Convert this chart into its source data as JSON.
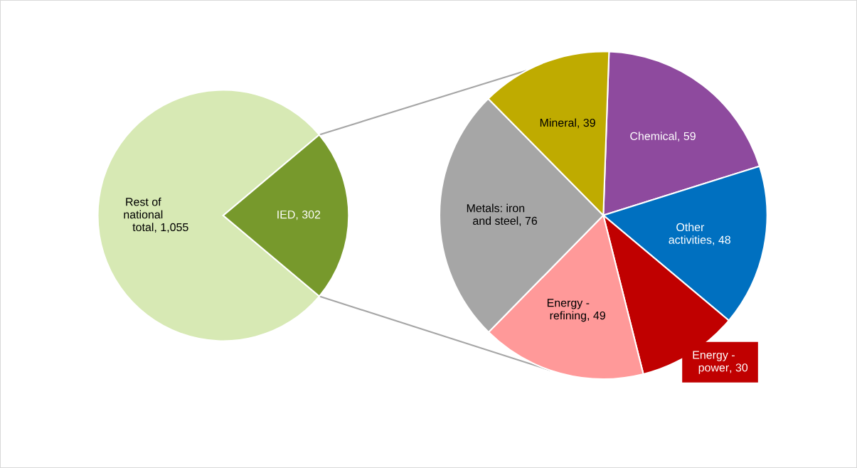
{
  "chart_data": [
    {
      "type": "pie",
      "categories": [
        "Rest of national total",
        "IED"
      ],
      "values": [
        1055,
        302
      ],
      "value_labels": [
        ", 1,055",
        ", 302"
      ],
      "colors": [
        "#d7e9b4",
        "#77992c"
      ],
      "data_labels": true
    },
    {
      "type": "pie",
      "categories": [
        "Chemical",
        "Other activities",
        "Energy - power",
        "Energy - refining",
        "Metals: iron and steel",
        "Mineral"
      ],
      "values": [
        59,
        48,
        30,
        49,
        76,
        39
      ],
      "value_labels": [
        ", 59",
        ", 48",
        ", 30",
        ", 49",
        ", 76",
        ", 39"
      ],
      "colors": [
        "#8e4a9e",
        "#0070c0",
        "#c00000",
        "#ff9999",
        "#a6a6a6",
        "#bfab00"
      ],
      "data_labels": true
    }
  ]
}
